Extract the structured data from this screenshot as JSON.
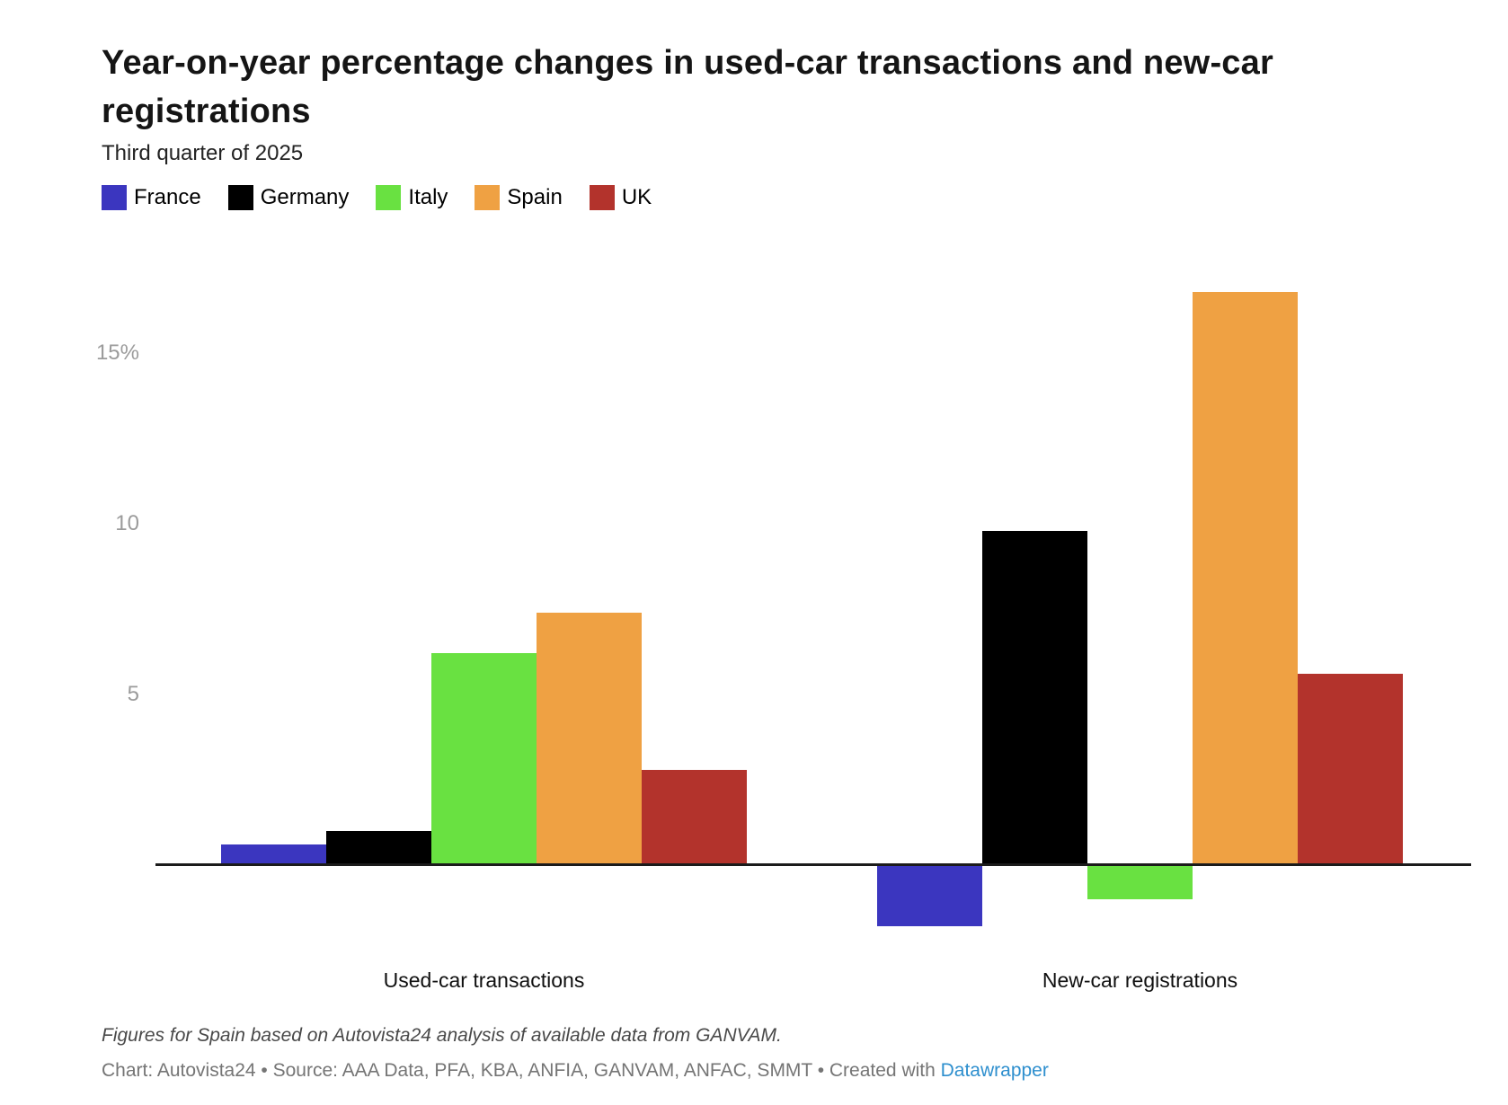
{
  "chart_data": {
    "type": "bar",
    "title": "Year-on-year percentage changes in used-car transactions and new-car registrations",
    "subtitle": "Third quarter of 2025",
    "categories": [
      "Used-car transactions",
      "New-car registrations"
    ],
    "series": [
      {
        "name": "France",
        "color": "#3b36bf",
        "values": [
          0.6,
          -1.8
        ]
      },
      {
        "name": "Germany",
        "color": "#000000",
        "values": [
          1.0,
          9.8
        ]
      },
      {
        "name": "Italy",
        "color": "#69e141",
        "values": [
          6.2,
          -1.0
        ]
      },
      {
        "name": "Spain",
        "color": "#efa143",
        "values": [
          7.4,
          16.8
        ]
      },
      {
        "name": "UK",
        "color": "#b3332c",
        "values": [
          2.8,
          5.6
        ]
      }
    ],
    "unit": "%",
    "y_ticks": [
      {
        "value": 15,
        "label": "15%"
      },
      {
        "value": 10,
        "label": "10"
      },
      {
        "value": 5,
        "label": "5"
      }
    ],
    "ylim": [
      -2.6,
      18.2
    ],
    "grid": false,
    "legend_position": "top-left",
    "axis_color": "#1b1b1b",
    "tick_label_color": "#9b9b9b"
  },
  "footer": {
    "note": "Figures for Spain based on Autovista24 analysis of available data from GANVAM.",
    "byline_prefix": "Chart: Autovista24 • Source: AAA Data, PFA, KBA, ANFIA, GANVAM, ANFAC, SMMT • Created with ",
    "link_label": "Datawrapper",
    "link_color": "#2e8fce"
  }
}
